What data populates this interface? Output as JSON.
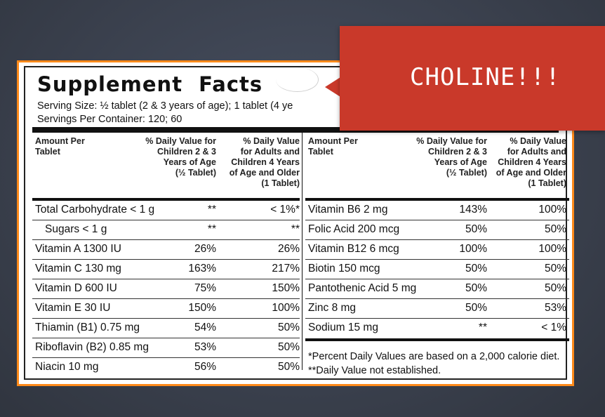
{
  "label": {
    "title": "Supplement Facts",
    "serving_size": "Serving Size: ½ tablet (2 & 3 years of age); 1 tablet (4 ye",
    "servings_per_container": "Servings Per Container: 120; 60"
  },
  "left_table": {
    "headers": [
      "Amount Per\nTablet",
      "% Daily Value for\nChildren 2 & 3\nYears of Age\n(½ Tablet)",
      "% Daily Value\nfor Adults and\nChildren 4 Years\nof Age and Older\n(1 Tablet)"
    ],
    "rows": [
      {
        "name": "Total Carbohydrate < 1 g",
        "child": "**",
        "adult": "< 1%*"
      },
      {
        "name": "Sugars < 1 g",
        "child": "**",
        "adult": "**"
      },
      {
        "name": "Vitamin A 1300 IU",
        "child": "26%",
        "adult": "26%"
      },
      {
        "name": "Vitamin C 130 mg",
        "child": "163%",
        "adult": "217%"
      },
      {
        "name": "Vitamin D 600 IU",
        "child": "75%",
        "adult": "150%"
      },
      {
        "name": "Vitamin E 30 IU",
        "child": "150%",
        "adult": "100%"
      },
      {
        "name": "Thiamin (B1) 0.75 mg",
        "child": "54%",
        "adult": "50%"
      },
      {
        "name": "Riboflavin (B2) 0.85 mg",
        "child": "53%",
        "adult": "50%"
      },
      {
        "name": "Niacin 10 mg",
        "child": "56%",
        "adult": "50%"
      }
    ]
  },
  "right_table": {
    "headers": [
      "Amount Per\nTablet",
      "% Daily Value for\nChildren 2 & 3\nYears of Age\n(½ Tablet)",
      "% Daily Value\nfor Adults and\nChildren 4 Years\nof Age and Older\n(1 Tablet)"
    ],
    "rows": [
      {
        "name": "Vitamin B6 2 mg",
        "child": "143%",
        "adult": "100%"
      },
      {
        "name": "Folic Acid 200 mcg",
        "child": "50%",
        "adult": "50%"
      },
      {
        "name": "Vitamin B12 6 mcg",
        "child": "100%",
        "adult": "100%"
      },
      {
        "name": "Biotin 150 mcg",
        "child": "50%",
        "adult": "50%"
      },
      {
        "name": "Pantothenic Acid 5 mg",
        "child": "50%",
        "adult": "50%"
      },
      {
        "name": "Zinc 8 mg",
        "child": "50%",
        "adult": "53%"
      },
      {
        "name": "Sodium 15 mg",
        "child": "**",
        "adult": "< 1%"
      }
    ],
    "footnotes": [
      "*Percent Daily Values are based on a 2,000 calorie diet.",
      "**Daily Value not established."
    ]
  },
  "callout": {
    "text": "CHOLINE!!!",
    "color": "#c9392a"
  },
  "colors": {
    "background": "#3b4250",
    "label_border": "#ff8a1a"
  }
}
